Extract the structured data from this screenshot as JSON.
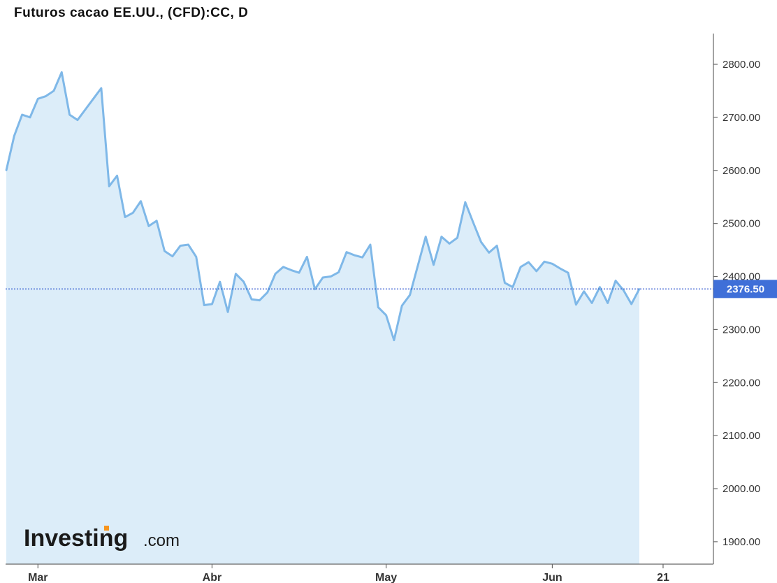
{
  "header": {
    "title": "Futuros cacao EE.UU., (CFD):CC, D"
  },
  "brand": {
    "name": "Investing",
    "suffix": ".com",
    "dot_color": "#f7941d"
  },
  "colors": {
    "line": "#7fb8e8",
    "fill": "#dcedf9",
    "price_line": "#1f48c9",
    "label_bg": "#3f6fd8"
  },
  "chart_data": {
    "type": "area",
    "title": "Futuros cacao EE.UU., (CFD):CC, D",
    "xlabel": "",
    "ylabel": "",
    "ylim": [
      1850,
      2850
    ],
    "y_ticks": [
      "1900.00",
      "2000.00",
      "2100.00",
      "2200.00",
      "2300.00",
      "2400.00",
      "2500.00",
      "2600.00",
      "2700.00",
      "2800.00"
    ],
    "x_ticks": [
      {
        "label": "Mar",
        "index": 4
      },
      {
        "label": "Abr",
        "index": 26
      },
      {
        "label": "May",
        "index": 48
      },
      {
        "label": "Jun",
        "index": 69
      },
      {
        "label": "21",
        "index": 83
      }
    ],
    "x_count": 86,
    "last_price": 2376.5,
    "last_price_label": "2376.50",
    "series": [
      {
        "values": [
          2600,
          2665,
          2705,
          2700,
          2735,
          2740,
          2750,
          2785,
          2705,
          2695,
          2715,
          2735,
          2755,
          2570,
          2590,
          2512,
          2520,
          2542,
          2495,
          2505,
          2448,
          2438,
          2458,
          2460,
          2437,
          2346,
          2348,
          2390,
          2333,
          2405,
          2390,
          2357,
          2355,
          2370,
          2405,
          2418,
          2412,
          2407,
          2437,
          2376,
          2398,
          2400,
          2408,
          2446,
          2440,
          2436,
          2460,
          2342,
          2327,
          2280,
          2345,
          2365,
          2420,
          2475,
          2422,
          2475,
          2462,
          2473,
          2540,
          2502,
          2465,
          2445,
          2458,
          2388,
          2380,
          2418,
          2427,
          2410,
          2428,
          2424,
          2415,
          2407,
          2347,
          2372,
          2350,
          2380,
          2350,
          2392,
          2374,
          2348,
          2376.5
        ]
      }
    ]
  }
}
